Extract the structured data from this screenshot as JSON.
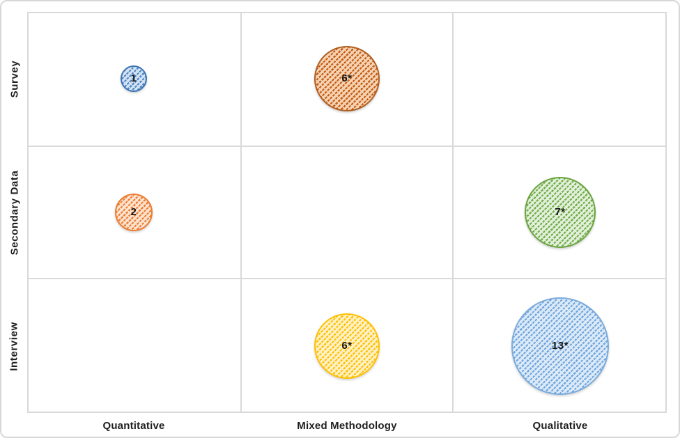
{
  "chart_data": {
    "type": "bubble",
    "title": "",
    "xlabel": "",
    "ylabel": "",
    "x_categories": [
      "Quantitative",
      "Mixed Methodology",
      "Qualitative"
    ],
    "y_categories": [
      "Survey",
      "Secondary Data",
      "Interview"
    ],
    "points": [
      {
        "x": "Quantitative",
        "y": "Survey",
        "value": 1,
        "label": "1",
        "scheme": "blue"
      },
      {
        "x": "Mixed Methodology",
        "y": "Survey",
        "value": 6,
        "label": "6*",
        "scheme": "dark_orange"
      },
      {
        "x": "Quantitative",
        "y": "Secondary Data",
        "value": 2,
        "label": "2",
        "scheme": "orange"
      },
      {
        "x": "Qualitative",
        "y": "Secondary Data",
        "value": 7,
        "label": "7*",
        "scheme": "green"
      },
      {
        "x": "Mixed Methodology",
        "y": "Interview",
        "value": 6,
        "label": "6*",
        "scheme": "yellow"
      },
      {
        "x": "Qualitative",
        "y": "Interview",
        "value": 13,
        "label": "13*",
        "scheme": "light_blue"
      }
    ],
    "colors": {
      "blue": {
        "bg": "#D3E2F2",
        "fg": "#4E86C6",
        "border": "#3D74B4"
      },
      "dark_orange": {
        "bg": "#F4D2B2",
        "fg": "#C55A11",
        "border": "#B05E20"
      },
      "orange": {
        "bg": "#FBE3D0",
        "fg": "#ED7D31",
        "border": "#ED7D31"
      },
      "green": {
        "bg": "#E2EFDA",
        "fg": "#70AD47",
        "border": "#6AA53F"
      },
      "yellow": {
        "bg": "#FFF1C5",
        "fg": "#FFC000",
        "border": "#FFC000"
      },
      "light_blue": {
        "bg": "#DCEAF8",
        "fg": "#6FA5DC",
        "border": "#7CACDE"
      }
    },
    "grid": true,
    "legend": false,
    "hatch_direction": "up-diagonal",
    "bubble_scale": {
      "base_radius_px": 19.3
    }
  },
  "style": {
    "gridline_color": "#D9D9D9",
    "axis_text_color": "#1F1F1F",
    "bubble_label_color": "#141414"
  }
}
